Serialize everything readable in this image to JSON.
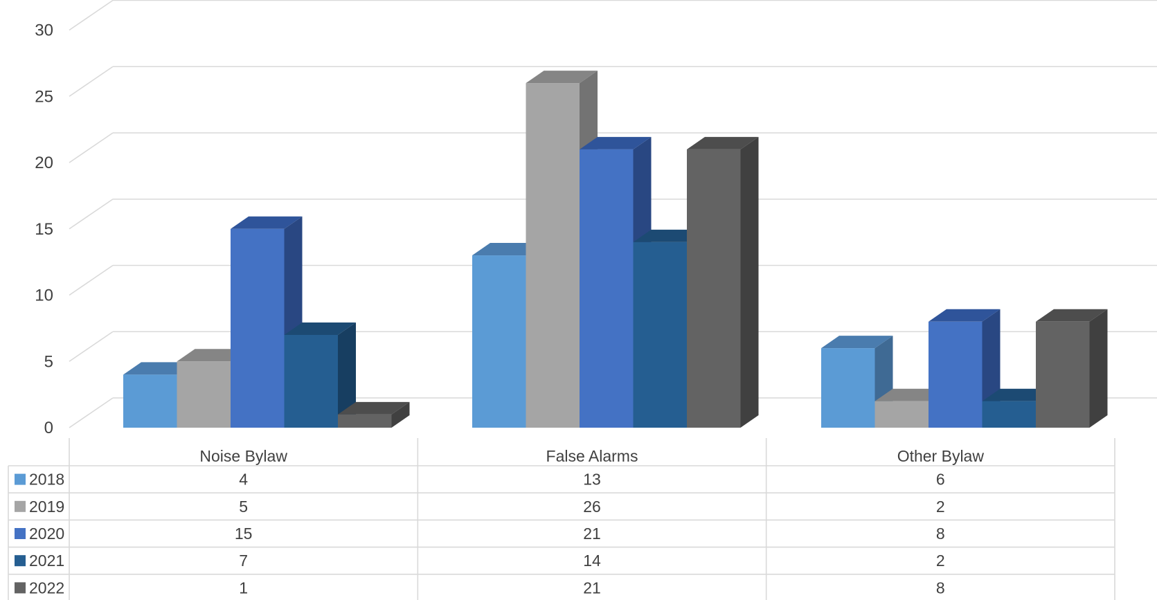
{
  "chart_data": {
    "type": "bar",
    "subtype": "3d-clustered-column-with-data-table",
    "title": "",
    "xlabel": "",
    "ylabel": "",
    "ylim": [
      0,
      30
    ],
    "y_ticks": [
      0,
      5,
      10,
      15,
      20,
      25,
      30
    ],
    "grid": true,
    "legend": "data-table",
    "categories": [
      "Noise Bylaw",
      "False Alarms",
      "Other Bylaw"
    ],
    "series": [
      {
        "name": "2018",
        "values": [
          4,
          13,
          6
        ],
        "color": "#5B9BD5",
        "color_top": "#4A7CAE",
        "color_side": "#3F6A94"
      },
      {
        "name": "2019",
        "values": [
          5,
          26,
          2
        ],
        "color": "#A5A5A5",
        "color_top": "#858585",
        "color_side": "#737373"
      },
      {
        "name": "2020",
        "values": [
          15,
          21,
          8
        ],
        "color": "#4472C4",
        "color_top": "#2F549A",
        "color_side": "#294782"
      },
      {
        "name": "2021",
        "values": [
          7,
          14,
          2
        ],
        "color": "#255E91",
        "color_top": "#1C4A73",
        "color_side": "#173E61"
      },
      {
        "name": "2022",
        "values": [
          1,
          21,
          8
        ],
        "color": "#636363",
        "color_top": "#4D4D4D",
        "color_side": "#404040"
      }
    ]
  }
}
